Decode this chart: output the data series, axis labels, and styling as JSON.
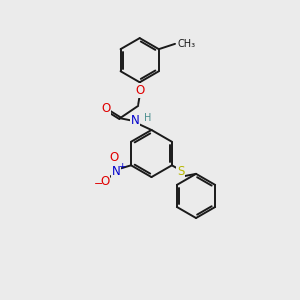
{
  "background_color": "#ebebeb",
  "bond_color": "#1a1a1a",
  "atom_colors": {
    "O": "#e00000",
    "N": "#0000cc",
    "S": "#b8b800",
    "H": "#4a8f8f",
    "C": "#1a1a1a"
  },
  "lw": 1.4,
  "fs": 8.5,
  "fs_small": 7.0
}
